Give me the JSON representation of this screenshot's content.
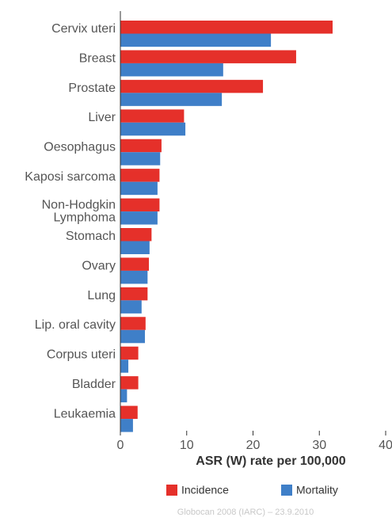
{
  "chart_data": {
    "type": "hbar",
    "categories": [
      "Cervix uteri",
      "Breast",
      "Prostate",
      "Liver",
      "Oesophagus",
      "Kaposi sarcoma",
      [
        "Non-Hodgkin",
        "Lymphoma"
      ],
      "Stomach",
      "Ovary",
      "Lung",
      "Lip. oral cavity",
      "Corpus uteri",
      "Bladder",
      "Leukaemia"
    ],
    "series": [
      {
        "name": "Incidence",
        "color": "#e5302a",
        "values": [
          32.0,
          26.5,
          21.5,
          9.6,
          6.2,
          5.9,
          5.9,
          4.7,
          4.3,
          4.1,
          3.8,
          2.7,
          2.7,
          2.6
        ]
      },
      {
        "name": "Mortality",
        "color": "#3f7fc8",
        "values": [
          22.7,
          15.5,
          15.3,
          9.8,
          6.0,
          5.6,
          5.6,
          4.4,
          4.1,
          3.2,
          3.7,
          1.2,
          1.0,
          1.9
        ]
      }
    ],
    "xlim": [
      0,
      40
    ],
    "xticks": [
      0,
      10,
      20,
      30,
      40
    ],
    "xlabel": "ASR (W) rate per 100,000",
    "source": "Globocan 2008 (IARC) – 23.9.2010",
    "legend": "bottom"
  }
}
